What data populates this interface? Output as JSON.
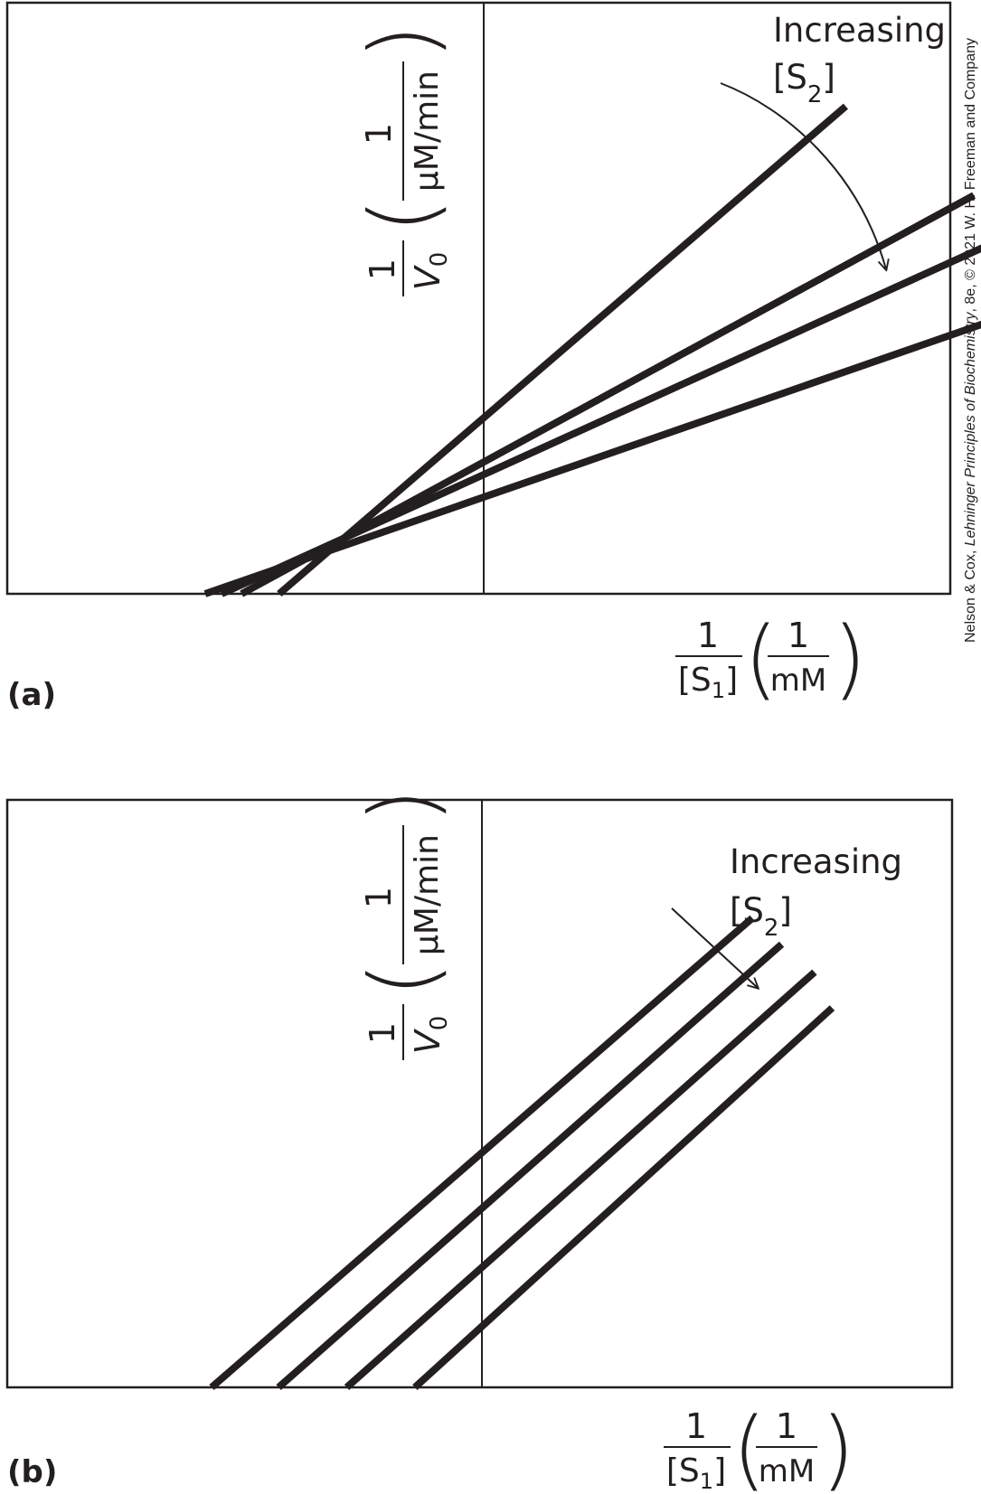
{
  "credit": {
    "text_before": "Nelson & Cox, ",
    "text_italic": "Lehninger Principles of Biochemistry",
    "text_after": ", 8e, © 2021 W. H. Freeman and Company"
  },
  "chart_data": [
    {
      "type": "line",
      "panel_label": "(a)",
      "annotation": {
        "line1": "Increasing",
        "line2_prefix": "[S",
        "line2_sub": "2",
        "line2_suffix": "]"
      },
      "ylabel": {
        "frac_num": "1",
        "frac_den_v": "V",
        "frac_den_sub": "0",
        "unit_num": "1",
        "unit_den": "µM/min"
      },
      "xlabel": {
        "frac_num": "1",
        "frac_den_prefix": "[S",
        "frac_den_sub": "1",
        "frac_den_suffix": "]",
        "unit_num": "1",
        "unit_den": "mM"
      },
      "xlim": [
        -3.0,
        3.0
      ],
      "ylim": [
        -2.0,
        5.5
      ],
      "series": [
        {
          "x": [
            -1.74,
            3.08
          ],
          "y": [
            -2.0,
            4.13
          ]
        },
        {
          "x": [
            -2.06,
            4.17
          ],
          "y": [
            -2.0,
            3.01
          ]
        },
        {
          "x": [
            -2.23,
            4.45
          ],
          "y": [
            -2.0,
            2.49
          ]
        },
        {
          "x": [
            -2.37,
            4.67
          ],
          "y": [
            -2.0,
            1.61
          ]
        }
      ]
    },
    {
      "type": "line",
      "panel_label": "(b)",
      "annotation": {
        "line1": "Increasing",
        "line2_prefix": "[S",
        "line2_sub": "2",
        "line2_suffix": "]"
      },
      "ylabel": {
        "frac_num": "1",
        "frac_den_v": "V",
        "frac_den_sub": "0",
        "unit_num": "1",
        "unit_den": "µM/min"
      },
      "xlabel": {
        "frac_num": "1",
        "frac_den_prefix": "[S",
        "frac_den_sub": "1",
        "frac_den_suffix": "]",
        "unit_num": "1",
        "unit_den": "mM"
      },
      "xlim": [
        -3.0,
        3.0
      ],
      "ylim": [
        -2.0,
        5.5
      ],
      "series": [
        {
          "x": [
            -2.3,
            2.3
          ],
          "y": [
            -2.0,
            3.9
          ]
        },
        {
          "x": [
            -1.73,
            2.55
          ],
          "y": [
            -2.0,
            3.57
          ]
        },
        {
          "x": [
            -1.15,
            2.83
          ],
          "y": [
            -2.0,
            3.22
          ]
        },
        {
          "x": [
            -0.57,
            2.98
          ],
          "y": [
            -2.0,
            2.77
          ]
        }
      ]
    }
  ]
}
